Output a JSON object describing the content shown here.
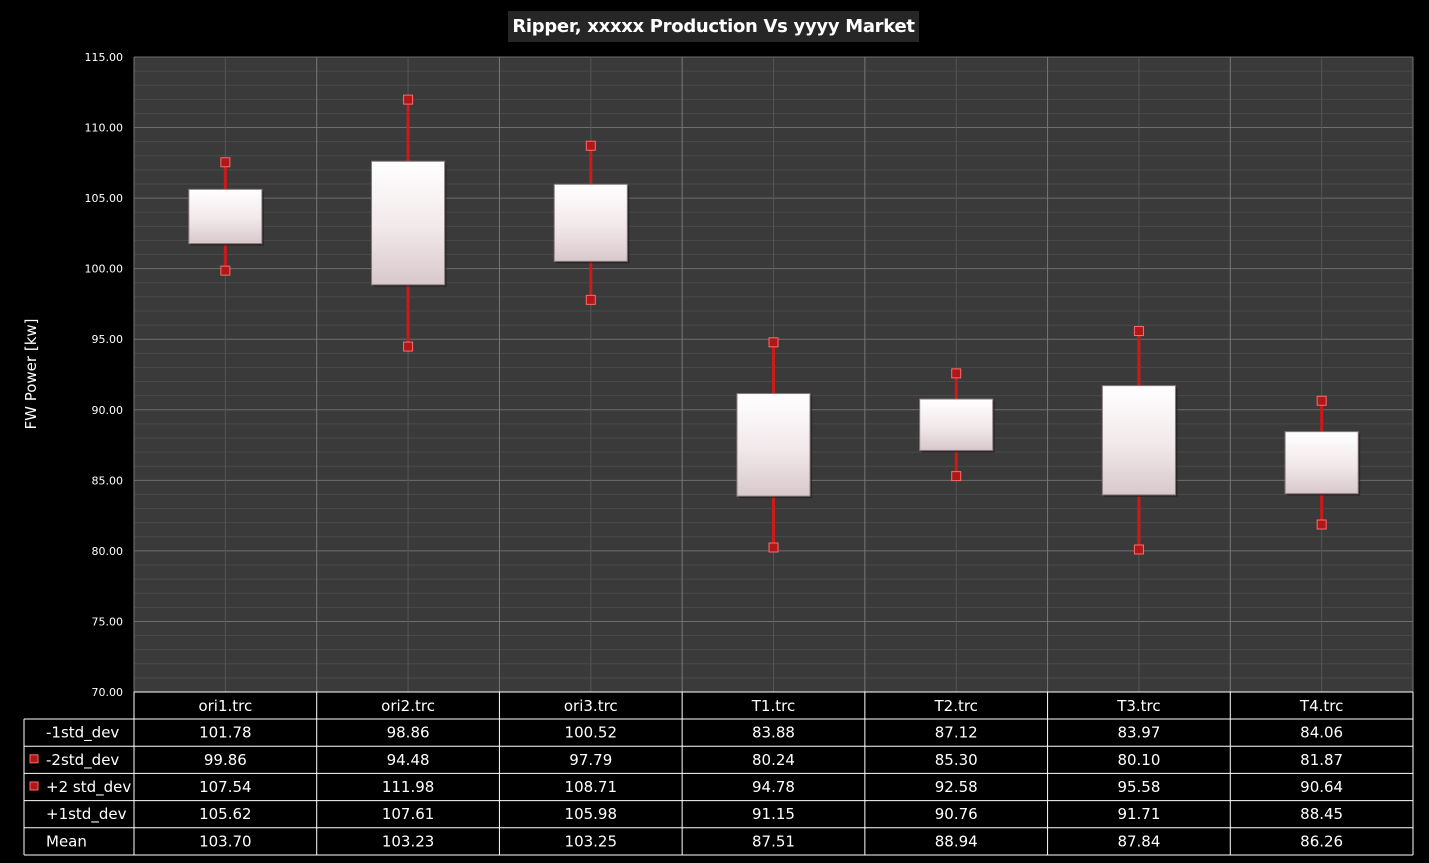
{
  "chart_data": {
    "type": "box",
    "title": "Ripper, xxxxx Production Vs yyyy Market",
    "xlabel": "",
    "ylabel": "FW Power [kw]",
    "ylim": [
      70,
      115
    ],
    "yticks": [
      "70.00",
      "75.00",
      "80.00",
      "85.00",
      "90.00",
      "95.00",
      "100.00",
      "105.00",
      "110.00",
      "115.00"
    ],
    "grid": true,
    "legend": "table-bottom",
    "categories": [
      "ori1.trc",
      "ori2.trc",
      "ori3.trc",
      "T1.trc",
      "T2.trc",
      "T3.trc",
      "T4.trc"
    ],
    "series": [
      {
        "name": "-1std_dev",
        "values": [
          101.78,
          98.86,
          100.52,
          83.88,
          87.12,
          83.97,
          84.06
        ],
        "labels": [
          "101.78",
          "98.86",
          "100.52",
          "83.88",
          "87.12",
          "83.97",
          "84.06"
        ]
      },
      {
        "name": "-2std_dev",
        "values": [
          99.86,
          94.48,
          97.79,
          80.24,
          85.3,
          80.1,
          81.87
        ],
        "labels": [
          "99.86",
          "94.48",
          "97.79",
          "80.24",
          "85.30",
          "80.10",
          "81.87"
        ]
      },
      {
        "name": "+2 std_dev",
        "values": [
          107.54,
          111.98,
          108.71,
          94.78,
          92.58,
          95.58,
          90.64
        ],
        "labels": [
          "107.54",
          "111.98",
          "108.71",
          "94.78",
          "92.58",
          "95.58",
          "90.64"
        ]
      },
      {
        "name": "+1std_dev",
        "values": [
          105.62,
          107.61,
          105.98,
          91.15,
          90.76,
          91.71,
          88.45
        ],
        "labels": [
          "105.62",
          "107.61",
          "105.98",
          "91.15",
          "90.76",
          "91.71",
          "88.45"
        ]
      },
      {
        "name": "Mean",
        "values": [
          103.7,
          103.23,
          103.25,
          87.51,
          88.94,
          87.84,
          86.26
        ],
        "labels": [
          "103.70",
          "103.23",
          "103.25",
          "87.51",
          "88.94",
          "87.84",
          "86.26"
        ]
      }
    ]
  },
  "colors": {
    "background": "#000000",
    "plot_area": "#3a3a3a",
    "gridline": "#5a5a5a",
    "whisker": "#cc1a1a",
    "marker": "#b01818",
    "box_fill_top": "#ffffff",
    "box_fill_bottom": "#d8c8cc"
  }
}
